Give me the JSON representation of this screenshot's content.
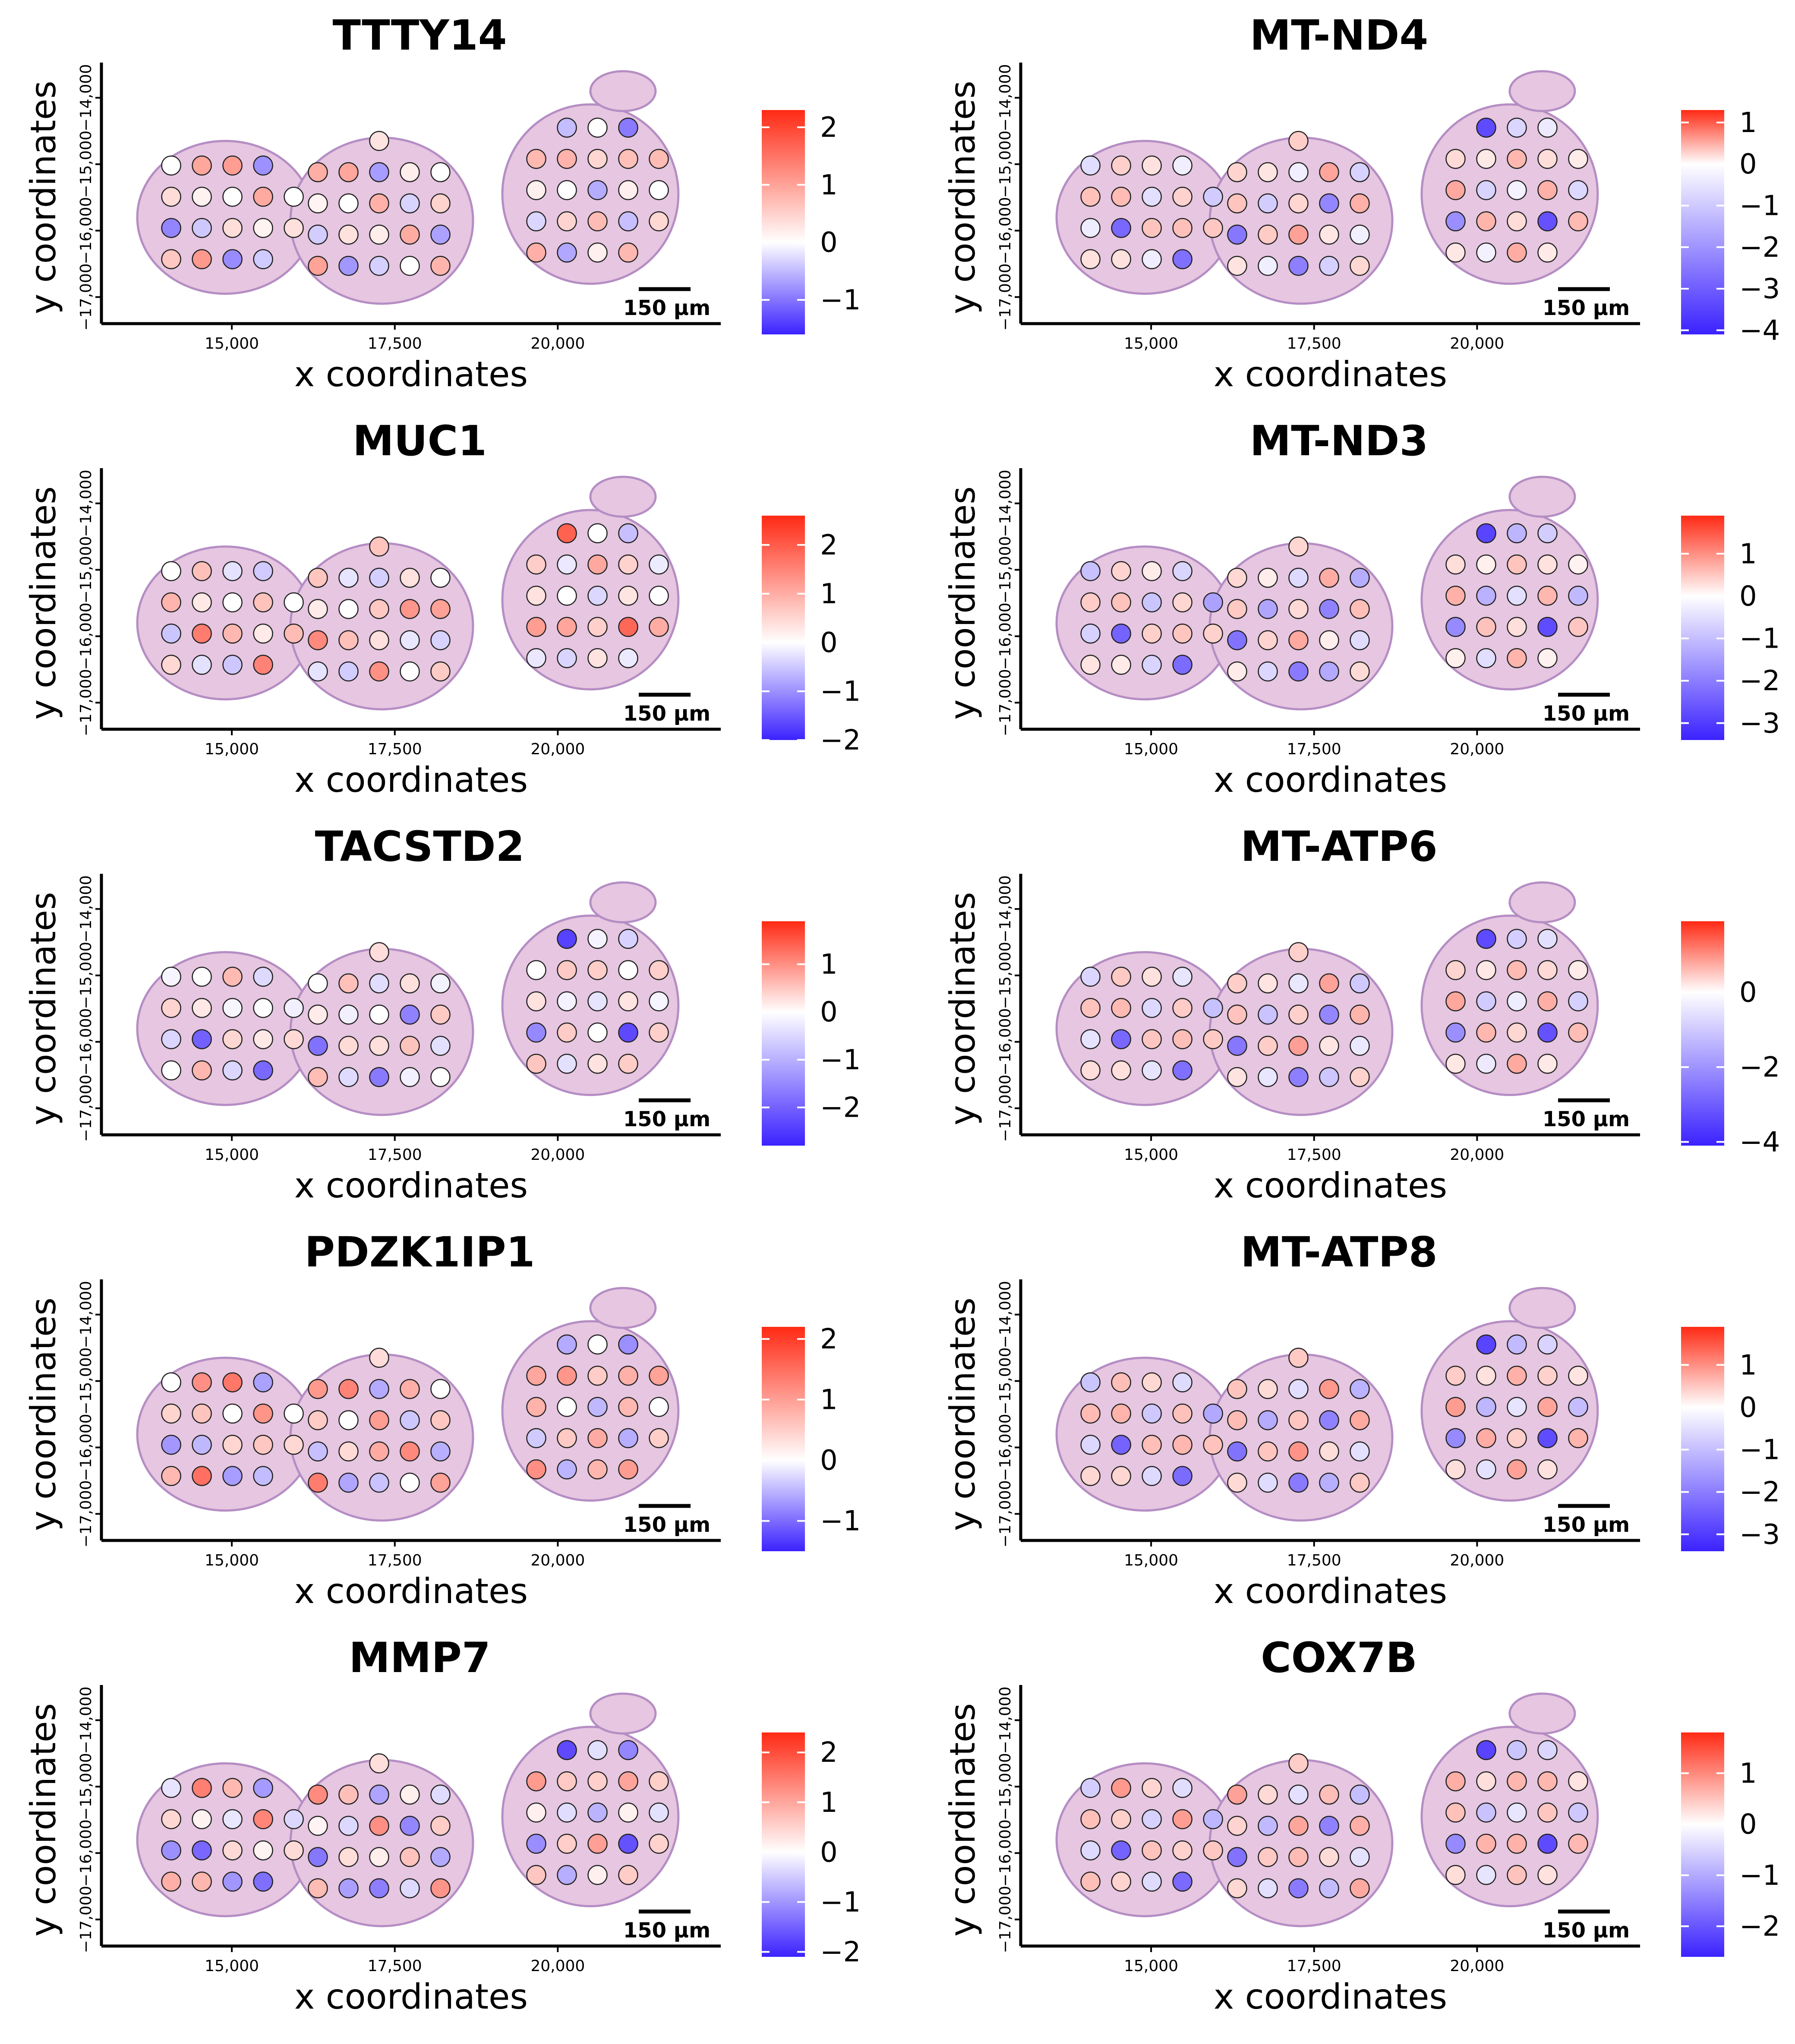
{
  "palette": {
    "low": "#3b22ff",
    "mid": "#ffffff",
    "high": "#ff2a14",
    "tissue": "#e6c6e0",
    "tissue_edge": "#b58dc4"
  },
  "chart_data": [
    {
      "type": "scatter",
      "title": "TTTY14",
      "xlabel": "x coordinates",
      "ylabel": "y coordinates",
      "xlim": [
        13000,
        22500
      ],
      "ylim": [
        -17400,
        -13600
      ],
      "x_ticks": [
        "15,000",
        "17,500",
        "20,000"
      ],
      "y_ticks": [
        "−17,000",
        "−16,000",
        "−15,000",
        "−14,000"
      ],
      "scale_bar": "150 µm",
      "legend": {
        "min": -1.6,
        "max": 2.3,
        "ticks": [
          2,
          1,
          0,
          -1
        ],
        "tick_labels": [
          "2",
          "1",
          "0",
          "−1"
        ]
      },
      "pattern": [
        1,
        -1,
        0.5,
        0,
        1.2,
        -0.5,
        0.2
      ]
    },
    {
      "type": "scatter",
      "title": "MT-ND4",
      "xlabel": "x coordinates",
      "ylabel": "y coordinates",
      "xlim": [
        13000,
        22500
      ],
      "ylim": [
        -17400,
        -13600
      ],
      "x_ticks": [
        "15,000",
        "17,500",
        "20,000"
      ],
      "y_ticks": [
        "−17,000",
        "−16,000",
        "−15,000",
        "−14,000"
      ],
      "scale_bar": "150 µm",
      "legend": {
        "min": -4.1,
        "max": 1.3,
        "ticks": [
          1,
          0,
          -1,
          -2,
          -3,
          -4
        ],
        "tick_labels": [
          "1",
          "0",
          "−1",
          "−2",
          "−3",
          "−4"
        ]
      },
      "pattern": [
        0.3,
        -0.4,
        0.5,
        -1,
        0.2,
        -3.5,
        0.6
      ]
    },
    {
      "type": "scatter",
      "title": "MUC1",
      "xlabel": "x coordinates",
      "ylabel": "y coordinates",
      "xlim": [
        13000,
        22500
      ],
      "ylim": [
        -17400,
        -13600
      ],
      "x_ticks": [
        "15,000",
        "17,500",
        "20,000"
      ],
      "y_ticks": [
        "−17,000",
        "−16,000",
        "−15,000",
        "−14,000"
      ],
      "scale_bar": "150 µm",
      "legend": {
        "min": -2,
        "max": 2.6,
        "ticks": [
          2,
          1,
          0,
          -1,
          -2
        ],
        "tick_labels": [
          "2",
          "1",
          "0",
          "−1",
          "−2"
        ]
      },
      "pattern": [
        0.8,
        -0.6,
        1.2,
        0,
        -0.3,
        2,
        0.4
      ]
    },
    {
      "type": "scatter",
      "title": "MT-ND3",
      "xlabel": "x coordinates",
      "ylabel": "y coordinates",
      "xlim": [
        13000,
        22500
      ],
      "ylim": [
        -17400,
        -13600
      ],
      "x_ticks": [
        "15,000",
        "17,500",
        "20,000"
      ],
      "y_ticks": [
        "−17,000",
        "−16,000",
        "−15,000",
        "−14,000"
      ],
      "scale_bar": "150 µm",
      "legend": {
        "min": -3.4,
        "max": 1.9,
        "ticks": [
          1,
          0,
          -1,
          -2,
          -3
        ],
        "tick_labels": [
          "1",
          "0",
          "−1",
          "−2",
          "−3"
        ]
      },
      "pattern": [
        0.4,
        -0.8,
        0.6,
        -1.5,
        0.2,
        -3,
        0.8
      ]
    },
    {
      "type": "scatter",
      "title": "TACSTD2",
      "xlabel": "x coordinates",
      "ylabel": "y coordinates",
      "xlim": [
        13000,
        22500
      ],
      "ylim": [
        -17400,
        -13600
      ],
      "x_ticks": [
        "15,000",
        "17,500",
        "20,000"
      ],
      "y_ticks": [
        "−17,000",
        "−16,000",
        "−15,000",
        "−14,000"
      ],
      "scale_bar": "150 µm",
      "legend": {
        "min": -2.8,
        "max": 1.9,
        "ticks": [
          1,
          0,
          -1,
          -2
        ],
        "tick_labels": [
          "1",
          "0",
          "−1",
          "−2"
        ]
      },
      "pattern": [
        0,
        -0.6,
        0.5,
        -0.2,
        0.7,
        -2.5,
        0.3
      ]
    },
    {
      "type": "scatter",
      "title": "MT-ATP6",
      "xlabel": "x coordinates",
      "ylabel": "y coordinates",
      "xlim": [
        13000,
        22500
      ],
      "ylim": [
        -17400,
        -13600
      ],
      "x_ticks": [
        "15,000",
        "17,500",
        "20,000"
      ],
      "y_ticks": [
        "−17,000",
        "−16,000",
        "−15,000",
        "−14,000"
      ],
      "scale_bar": "150 µm",
      "legend": {
        "min": -4.1,
        "max": 1.9,
        "ticks": [
          0,
          -2,
          -4
        ],
        "tick_labels": [
          "0",
          "−2",
          "−4"
        ]
      },
      "pattern": [
        0.5,
        -0.6,
        0.7,
        -1.2,
        0.3,
        -3.5,
        0.9
      ]
    },
    {
      "type": "scatter",
      "title": "PDZK1IP1",
      "xlabel": "x coordinates",
      "ylabel": "y coordinates",
      "xlim": [
        13000,
        22500
      ],
      "ylim": [
        -17400,
        -13600
      ],
      "x_ticks": [
        "15,000",
        "17,500",
        "20,000"
      ],
      "y_ticks": [
        "−17,000",
        "−16,000",
        "−15,000",
        "−14,000"
      ],
      "scale_bar": "150 µm",
      "legend": {
        "min": -1.5,
        "max": 2.2,
        "ticks": [
          2,
          1,
          0,
          -1
        ],
        "tick_labels": [
          "2",
          "1",
          "0",
          "−1"
        ]
      },
      "pattern": [
        1.2,
        -0.8,
        0.6,
        0,
        1.6,
        -0.6,
        0.9
      ]
    },
    {
      "type": "scatter",
      "title": "MT-ATP8",
      "xlabel": "x coordinates",
      "ylabel": "y coordinates",
      "xlim": [
        13000,
        22500
      ],
      "ylim": [
        -17400,
        -13600
      ],
      "x_ticks": [
        "15,000",
        "17,500",
        "20,000"
      ],
      "y_ticks": [
        "−17,000",
        "−16,000",
        "−15,000",
        "−14,000"
      ],
      "scale_bar": "150 µm",
      "legend": {
        "min": -3.4,
        "max": 1.9,
        "ticks": [
          1,
          0,
          -1,
          -2,
          -3
        ],
        "tick_labels": [
          "1",
          "0",
          "−1",
          "−2",
          "−3"
        ]
      },
      "pattern": [
        0.6,
        -0.7,
        0.8,
        -1.4,
        0.4,
        -3,
        1
      ]
    },
    {
      "type": "scatter",
      "title": "MMP7",
      "xlabel": "x coordinates",
      "ylabel": "y coordinates",
      "xlim": [
        13000,
        22500
      ],
      "ylim": [
        -17400,
        -13600
      ],
      "x_ticks": [
        "15,000",
        "17,500",
        "20,000"
      ],
      "y_ticks": [
        "−17,000",
        "−16,000",
        "−15,000",
        "−14,000"
      ],
      "scale_bar": "150 µm",
      "legend": {
        "min": -2.1,
        "max": 2.4,
        "ticks": [
          2,
          1,
          0,
          -1,
          -2
        ],
        "tick_labels": [
          "2",
          "1",
          "0",
          "−1",
          "−2"
        ]
      },
      "pattern": [
        1.5,
        -1.2,
        0.6,
        -0.4,
        0.9,
        -1.8,
        0.2
      ]
    },
    {
      "type": "scatter",
      "title": "COX7B",
      "xlabel": "x coordinates",
      "ylabel": "y coordinates",
      "xlim": [
        13000,
        22500
      ],
      "ylim": [
        -17400,
        -13600
      ],
      "x_ticks": [
        "15,000",
        "17,500",
        "20,000"
      ],
      "y_ticks": [
        "−17,000",
        "−16,000",
        "−15,000",
        "−14,000"
      ],
      "scale_bar": "150 µm",
      "legend": {
        "min": -2.6,
        "max": 1.8,
        "ticks": [
          1,
          0,
          -1,
          -2
        ],
        "tick_labels": [
          "1",
          "0",
          "−1",
          "−2"
        ]
      },
      "pattern": [
        0.9,
        -0.5,
        0.7,
        -0.9,
        0.4,
        -2.3,
        0.6
      ]
    }
  ]
}
